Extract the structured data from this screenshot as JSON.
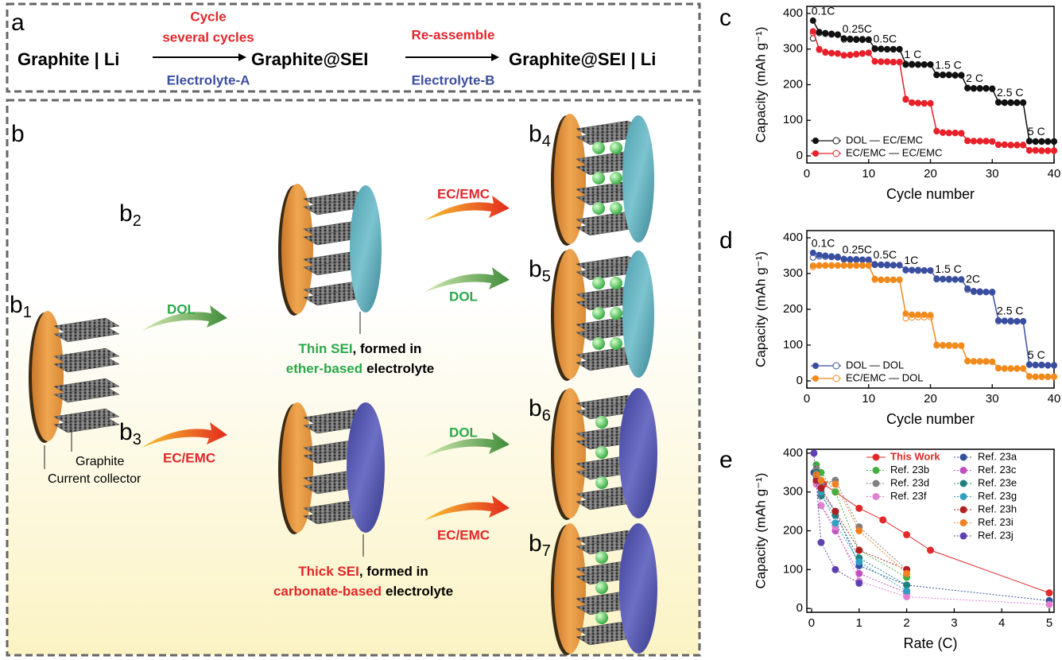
{
  "panel_a": {
    "label": "a",
    "start": "Graphite | Li",
    "step1": {
      "above": [
        "Cycle",
        "several cycles"
      ],
      "below": "Electrolyte-A"
    },
    "middle": "Graphite@SEI",
    "step2": {
      "above": "Re-assemble",
      "below": "Electrolyte-B"
    },
    "end": "Graphite@SEI | Li"
  },
  "panel_b": {
    "label": "b",
    "stages": [
      {
        "main": "b",
        "sub": "1"
      },
      {
        "main": "b",
        "sub": "2"
      },
      {
        "main": "b",
        "sub": "3"
      },
      {
        "main": "b",
        "sub": "4"
      },
      {
        "main": "b",
        "sub": "5"
      },
      {
        "main": "b",
        "sub": "6"
      },
      {
        "main": "b",
        "sub": "7"
      }
    ],
    "arrows": [
      "DOL",
      "EC/EMC",
      "EC/EMC",
      "DOL",
      "DOL",
      "EC/EMC"
    ],
    "graphite": "Graphite",
    "collector": "Current collector",
    "thin": [
      "Thin SEI",
      ", formed in",
      "ether-based",
      "electrolyte"
    ],
    "thick": [
      "Thick SEI",
      ", formed in",
      "carbonate-based",
      "electrolyte"
    ]
  },
  "chart_data": [
    {
      "type": "line",
      "panel": "c",
      "x": [
        1,
        2,
        3,
        4,
        5,
        6,
        7,
        8,
        9,
        10,
        11,
        12,
        13,
        14,
        15,
        16,
        17,
        18,
        19,
        20,
        21,
        22,
        23,
        24,
        25,
        26,
        27,
        28,
        29,
        30,
        31,
        32,
        33,
        34,
        35,
        36,
        37,
        38,
        39,
        40
      ],
      "xlim": [
        0,
        40
      ],
      "xticks": [
        0,
        10,
        20,
        30,
        40
      ],
      "ylim": [
        -20,
        420
      ],
      "yticks": [
        0,
        100,
        200,
        300,
        400
      ],
      "xlabel": "Cycle number",
      "ylabel": "Capacity (mAh g⁻¹)",
      "legend": "lower left",
      "annotations": [
        "0.1C",
        "0.25C",
        "0.5C",
        "1 C",
        "1.5 C",
        "2 C",
        "2.5 C",
        "5 C"
      ],
      "series": [
        {
          "name": "DOL — EC/EMC",
          "color": "#111111",
          "values": [
            380,
            348,
            345,
            343,
            341,
            330,
            329,
            328,
            328,
            327,
            302,
            301,
            300,
            300,
            300,
            258,
            258,
            257,
            257,
            257,
            228,
            228,
            228,
            227,
            227,
            191,
            190,
            190,
            190,
            189,
            151,
            150,
            150,
            150,
            150,
            42,
            41,
            41,
            41,
            41
          ],
          "open_values": [
            330,
            345,
            343,
            341,
            340,
            327,
            327,
            326,
            326,
            326,
            300,
            300,
            299,
            299,
            299,
            256,
            256,
            256,
            256,
            256,
            227,
            227,
            227,
            226,
            226,
            190,
            189,
            189,
            189,
            188,
            150,
            149,
            149,
            149,
            149,
            41,
            40,
            40,
            40,
            40
          ]
        },
        {
          "name": "EC/EMC — EC/EMC",
          "color": "#e8202a",
          "values": [
            350,
            300,
            292,
            289,
            288,
            283,
            284,
            286,
            288,
            290,
            266,
            265,
            265,
            264,
            264,
            160,
            150,
            149,
            148,
            148,
            70,
            66,
            65,
            65,
            64,
            43,
            42,
            42,
            42,
            41,
            32,
            32,
            31,
            31,
            31,
            16,
            16,
            15,
            15,
            15
          ],
          "open_values": [
            345,
            298,
            290,
            288,
            287,
            282,
            283,
            285,
            287,
            289,
            265,
            264,
            264,
            263,
            263,
            158,
            149,
            148,
            147,
            147,
            69,
            65,
            64,
            64,
            63,
            42,
            41,
            41,
            41,
            40,
            31,
            31,
            30,
            30,
            30,
            15,
            15,
            14,
            14,
            14
          ]
        }
      ]
    },
    {
      "type": "line",
      "panel": "d",
      "x": [
        1,
        2,
        3,
        4,
        5,
        6,
        7,
        8,
        9,
        10,
        11,
        12,
        13,
        14,
        15,
        16,
        17,
        18,
        19,
        20,
        21,
        22,
        23,
        24,
        25,
        26,
        27,
        28,
        29,
        30,
        31,
        32,
        33,
        34,
        35,
        36,
        37,
        38,
        39,
        40
      ],
      "xlim": [
        0,
        40
      ],
      "xticks": [
        0,
        10,
        20,
        30,
        40
      ],
      "ylim": [
        -20,
        420
      ],
      "yticks": [
        0,
        100,
        200,
        300,
        400
      ],
      "xlabel": "Cycle number",
      "ylabel": "Capacity (mAh g⁻¹)",
      "legend": "lower left",
      "annotations": [
        "0.1C",
        "0.25C",
        "0.5C",
        "1C",
        "1.5 C",
        "2C",
        "2.5 C",
        "5 C"
      ],
      "series": [
        {
          "name": "DOL — DOL",
          "color": "#3a4ea0",
          "values": [
            358,
            352,
            350,
            348,
            347,
            341,
            340,
            340,
            339,
            339,
            326,
            325,
            325,
            324,
            324,
            311,
            310,
            310,
            309,
            309,
            286,
            285,
            285,
            284,
            284,
            258,
            251,
            250,
            249,
            249,
            169,
            168,
            168,
            167,
            167,
            46,
            45,
            45,
            44,
            44
          ],
          "open_values": [
            345,
            348,
            347,
            346,
            345,
            339,
            338,
            338,
            338,
            337,
            324,
            324,
            323,
            323,
            323,
            309,
            309,
            308,
            308,
            308,
            284,
            284,
            283,
            283,
            283,
            255,
            249,
            248,
            248,
            247,
            167,
            167,
            166,
            166,
            166,
            45,
            44,
            44,
            43,
            43
          ]
        },
        {
          "name": "EC/EMC — DOL",
          "color": "#f08a1c",
          "values": [
            322,
            323,
            323,
            323,
            323,
            323,
            323,
            323,
            323,
            323,
            285,
            283,
            283,
            283,
            283,
            188,
            185,
            185,
            185,
            184,
            101,
            100,
            100,
            99,
            99,
            56,
            55,
            55,
            55,
            54,
            36,
            35,
            35,
            35,
            35,
            13,
            12,
            12,
            12,
            12
          ],
          "open_values": [
            318,
            322,
            322,
            322,
            322,
            322,
            322,
            322,
            322,
            322,
            283,
            282,
            282,
            282,
            282,
            175,
            177,
            178,
            178,
            178,
            99,
            99,
            98,
            98,
            98,
            55,
            54,
            54,
            54,
            53,
            35,
            34,
            34,
            34,
            34,
            12,
            11,
            11,
            11,
            11
          ]
        }
      ]
    },
    {
      "type": "scatter",
      "panel": "e",
      "xlim": [
        -0.1,
        5.1
      ],
      "xticks": [
        0,
        1,
        2,
        3,
        4,
        5
      ],
      "ylim": [
        -10,
        410
      ],
      "yticks": [
        0,
        100,
        200,
        300,
        400
      ],
      "xlabel": "Rate (C)",
      "ylabel": "Capacity (mAh g⁻¹)",
      "legend": "upper right",
      "series": [
        {
          "name": "This Work",
          "color": "#e02a2a",
          "line_style": "solid",
          "highlight": true,
          "x": [
            0.1,
            0.25,
            0.5,
            1,
            1.5,
            2,
            2.5,
            5
          ],
          "values": [
            325,
            320,
            300,
            258,
            228,
            190,
            150,
            40
          ]
        },
        {
          "name": "Ref. 23a",
          "color": "#3050a0",
          "line_style": "dotted",
          "x": [
            0.05,
            0.1,
            0.2,
            0.5,
            1,
            2,
            5
          ],
          "values": [
            350,
            330,
            300,
            250,
            110,
            60,
            20
          ]
        },
        {
          "name": "Ref. 23b",
          "color": "#40b040",
          "line_style": "dotted",
          "x": [
            0.1,
            0.2,
            0.5,
            1,
            2
          ],
          "values": [
            370,
            350,
            300,
            150,
            80
          ]
        },
        {
          "name": "Ref. 23c",
          "color": "#c050c0",
          "line_style": "dotted",
          "x": [
            0.1,
            0.2,
            0.5,
            1,
            2
          ],
          "values": [
            330,
            265,
            200,
            90,
            40
          ]
        },
        {
          "name": "Ref. 23d",
          "color": "#808080",
          "line_style": "dotted",
          "x": [
            0.1,
            0.2,
            0.5,
            1,
            2
          ],
          "values": [
            360,
            320,
            330,
            210,
            100
          ]
        },
        {
          "name": "Ref. 23e",
          "color": "#208080",
          "line_style": "dotted",
          "x": [
            0.1,
            0.2,
            0.5,
            1,
            2
          ],
          "values": [
            350,
            290,
            240,
            130,
            60
          ]
        },
        {
          "name": "Ref. 23f",
          "color": "#e080d0",
          "line_style": "dotted",
          "x": [
            0.1,
            0.2,
            0.5,
            1,
            2,
            5
          ],
          "values": [
            320,
            265,
            210,
            70,
            30,
            10
          ]
        },
        {
          "name": "Ref. 23g",
          "color": "#30a0c0",
          "line_style": "dotted",
          "x": [
            0.1,
            0.2,
            0.5,
            1,
            2
          ],
          "values": [
            340,
            300,
            220,
            120,
            45
          ]
        },
        {
          "name": "Ref. 23h",
          "color": "#b02020",
          "line_style": "dotted",
          "x": [
            0.1,
            0.2,
            0.5,
            1,
            2
          ],
          "values": [
            330,
            310,
            250,
            150,
            100
          ]
        },
        {
          "name": "Ref. 23i",
          "color": "#f08020",
          "line_style": "dotted",
          "x": [
            0.1,
            0.2,
            0.5,
            1,
            2
          ],
          "values": [
            345,
            330,
            320,
            200,
            90
          ]
        },
        {
          "name": "Ref. 23j",
          "color": "#6040b0",
          "line_style": "dotted",
          "x": [
            0.05,
            0.2,
            0.5,
            1
          ],
          "values": [
            400,
            170,
            100,
            65
          ]
        }
      ]
    }
  ]
}
